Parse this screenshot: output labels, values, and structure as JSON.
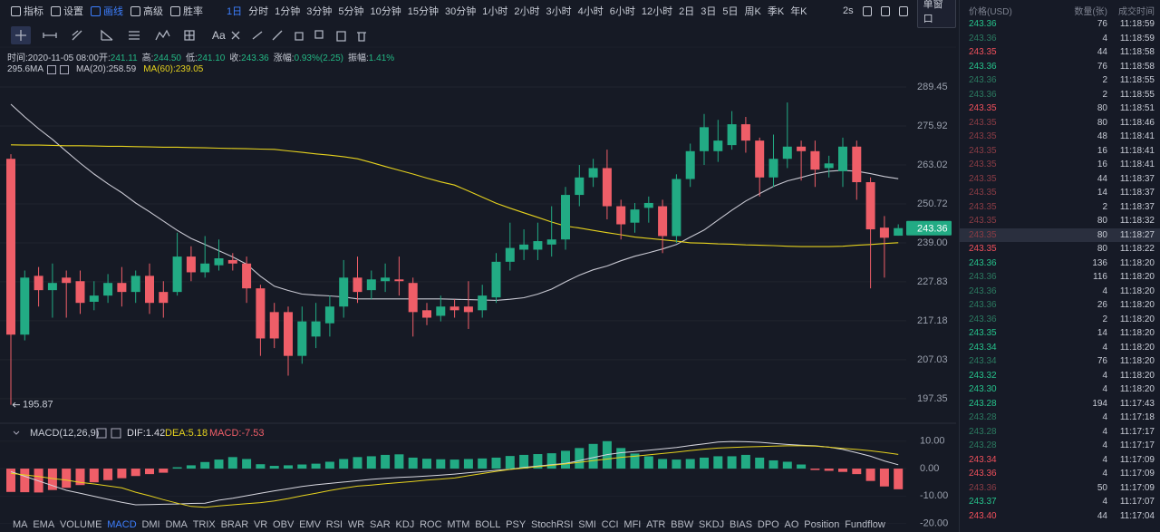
{
  "toolbar": {
    "menu": [
      "指标",
      "设置",
      "画线",
      "高级",
      "胜率"
    ],
    "menu_active": 2,
    "interval": "1日",
    "intervals": [
      "分时",
      "1分钟",
      "3分钟",
      "5分钟",
      "10分钟",
      "15分钟",
      "30分钟",
      "1小时",
      "2小时",
      "3小时",
      "4小时",
      "6小时",
      "12小时",
      "2日",
      "3日",
      "5日",
      "周K",
      "季K",
      "年K"
    ],
    "refresh": "2s",
    "window": "单窗口"
  },
  "drawing_tools": {
    "text_tool": "Aa"
  },
  "info": [
    {
      "label": "时间:",
      "value": "2020-11-05 08:00"
    },
    {
      "label": "开:",
      "value": "241.11"
    },
    {
      "label": "高:",
      "value": "244.50"
    },
    {
      "label": "低:",
      "value": "241.10"
    },
    {
      "label": "收:",
      "value": "243.36"
    },
    {
      "label": "涨幅:",
      "value": "0.93%(2.25)"
    },
    {
      "label": "振幅:",
      "value": "1.41%"
    }
  ],
  "ma_legend": {
    "label": "295.6MA",
    "items": [
      "MA(20):258.59",
      "MA(60):239.05"
    ]
  },
  "chart_data": [
    {
      "type": "candlestick",
      "up_color": "#22ab84",
      "down_color": "#ef5e68",
      "open": [
        265,
        213.5,
        229.5,
        225.5,
        229,
        228,
        222.3,
        224,
        227.5,
        225,
        229.5,
        225,
        225,
        235,
        230.5,
        232.5,
        234,
        233,
        226,
        219.5,
        219.5,
        208,
        213,
        216.5,
        221,
        229,
        225.5,
        228,
        228.5,
        227.5,
        220,
        218.5,
        221,
        221,
        220,
        223.5,
        233.5,
        237,
        237,
        238.5,
        240,
        253.5,
        259,
        262,
        250,
        245,
        249.5,
        250,
        241,
        258.5,
        267.5,
        267.5,
        269.5,
        276.5,
        271,
        259,
        265,
        269,
        267.5,
        262,
        261,
        269,
        257.5,
        243.5,
        241.11
      ],
      "high": [
        266.5,
        231,
        232,
        233,
        231,
        231,
        228,
        230,
        232,
        231,
        233,
        228,
        242,
        238,
        241,
        240,
        236,
        235,
        227,
        222,
        221,
        221,
        222,
        224,
        234,
        235,
        231,
        233,
        235,
        229,
        222,
        224,
        223,
        228,
        227,
        236,
        245,
        243,
        245,
        250,
        256,
        263,
        265,
        268,
        252,
        251,
        253,
        252,
        260,
        270,
        280,
        278,
        281,
        279,
        272,
        273,
        284,
        271,
        271,
        266,
        272,
        271,
        259,
        247,
        244.5
      ],
      "low": [
        195.87,
        212,
        221,
        218,
        218,
        219,
        220,
        222,
        221,
        222,
        219,
        218,
        224,
        228,
        229,
        231,
        231,
        222,
        208,
        210,
        203,
        206,
        210,
        213,
        218,
        222,
        223,
        225,
        224,
        213,
        216,
        217,
        218,
        215,
        218,
        222,
        231,
        234,
        234,
        235,
        237,
        250,
        256,
        246,
        240,
        242,
        245,
        236,
        239,
        256,
        263,
        264,
        268,
        267,
        253,
        256,
        262,
        258,
        256,
        259,
        256,
        252,
        226,
        229,
        241.1
      ],
      "close": [
        213.5,
        229,
        225.5,
        227.5,
        227.5,
        222,
        224,
        227.5,
        225,
        229.5,
        222,
        222,
        235,
        230.5,
        233,
        234.5,
        233,
        226,
        212.5,
        212.5,
        208,
        217,
        217,
        221,
        229,
        225,
        228.5,
        229,
        228,
        219.5,
        218,
        221,
        220,
        219.5,
        224,
        233.5,
        237.5,
        238.5,
        239.5,
        240,
        253.5,
        259,
        262,
        250,
        244.5,
        249,
        251,
        241,
        258.5,
        267.5,
        275.5,
        271,
        276.5,
        271,
        259,
        265,
        269,
        267.5,
        261.5,
        263.5,
        269,
        257.5,
        243,
        240.5,
        243.36
      ],
      "series": [
        {
          "color": "#c9c9d3",
          "values": [
            283.4,
            279,
            275,
            271.4,
            267.4,
            263.6,
            260.1,
            257,
            254.2,
            251,
            248.3,
            245.5,
            242.7,
            240.3,
            238.5,
            236.7,
            234.9,
            232.8,
            229.4,
            226.6,
            225.4,
            224.4,
            224.1,
            223.9,
            223.6,
            223.1,
            223.1,
            223.1,
            223.1,
            223.1,
            223.1,
            223.1,
            223,
            222.9,
            222.8,
            222.7,
            223,
            223.4,
            224.4,
            225.8,
            227.8,
            229.7,
            231.2,
            232.3,
            233.8,
            235.1,
            236.1,
            237.2,
            238.5,
            240.7,
            242.8,
            245.8,
            248.8,
            251.6,
            253.9,
            256.2,
            257.9,
            259,
            260.2,
            261,
            261.3,
            261,
            260.2,
            259.3,
            258.59
          ]
        },
        {
          "color": "#e6d21e",
          "values": [
            269.6,
            269.5,
            269.5,
            269.4,
            269.3,
            269.3,
            269.2,
            269.1,
            269.1,
            269,
            268.9,
            268.8,
            268.8,
            268.7,
            268.6,
            268.5,
            268.4,
            268.3,
            268.2,
            268.1,
            267.6,
            267.1,
            266.6,
            266.2,
            265.7,
            265,
            263.8,
            262.5,
            261.3,
            260.1,
            258.8,
            257.6,
            256.6,
            254.7,
            252.8,
            250.9,
            249.4,
            248,
            246.6,
            245.2,
            244,
            243.4,
            242.7,
            242,
            241.4,
            240.7,
            240.3,
            239.9,
            239.5,
            239,
            238.9,
            238.7,
            238.6,
            238.4,
            238.3,
            238.2,
            238,
            237.9,
            237.9,
            237.9,
            238,
            238.3,
            238.5,
            238.8,
            239.05
          ]
        }
      ],
      "ylim": [
        191.9,
        296.3
      ],
      "log_scale": true,
      "grid": true,
      "yticks": [
        289.45,
        275.92,
        263.02,
        250.72,
        {
          "value": 239,
          "label": "239.00"
        },
        227.83,
        217.18,
        207.03,
        197.35
      ],
      "last_price": 243.36,
      "low_marker": 195.87
    },
    {
      "type": "macd",
      "title": "MACD(12,26,9)",
      "legend": [
        "DIF:1.42",
        "DEA:5.18",
        "MACD:-7.53"
      ],
      "up_color": "#22ab84",
      "down_color": "#ef5e68",
      "histogram": [
        -8.5,
        -8.6,
        -8.7,
        -7.8,
        -7,
        -6,
        -5,
        -4.2,
        -3.5,
        -2.7,
        -2,
        -1.5,
        0.5,
        1.2,
        2.4,
        3.3,
        4.2,
        3.5,
        1.6,
        1,
        1.2,
        1.5,
        1.8,
        2.5,
        3.5,
        4.2,
        4.5,
        5,
        5.2,
        4,
        3.6,
        3.4,
        3.3,
        3.5,
        3.7,
        4,
        4.6,
        5,
        5.3,
        5.6,
        6.5,
        7.5,
        9,
        10,
        7.5,
        5.5,
        4.5,
        3.5,
        3.3,
        3.5,
        4,
        4.5,
        4.5,
        5,
        4,
        3,
        2.5,
        1.5,
        -0.5,
        -0.8,
        -1.2,
        -2,
        -4.5,
        -6.5,
        -7.53
      ],
      "series": [
        {
          "color": "#d6d6de",
          "values": [
            -1.1,
            -2.8,
            -4.5,
            -6.2,
            -7.9,
            -9,
            -10.1,
            -11.2,
            -12.3,
            -13.2,
            -13.1,
            -13,
            -12.9,
            -12.7,
            -12.6,
            -11.5,
            -10.8,
            -9.9,
            -9,
            -8.1,
            -7.3,
            -6.5,
            -5.9,
            -5.4,
            -4.9,
            -4.4,
            -3.9,
            -3.5,
            -3.2,
            -3,
            -2.7,
            -2.4,
            -2,
            -1.5,
            -1.1,
            -0.6,
            -0.2,
            0.4,
            0.9,
            1.4,
            1.9,
            2.9,
            4,
            5.1,
            5.8,
            6.2,
            6.7,
            7.2,
            7.7,
            8.4,
            9,
            9.7,
            9.9,
            9.8,
            9.6,
            9.2,
            8.8,
            8.5,
            8.3,
            7.8,
            7,
            5.8,
            4.5,
            2.8,
            1.42
          ]
        },
        {
          "color": "#e6d21e",
          "values": [
            -1.7,
            -2.3,
            -2.9,
            -3.6,
            -4.2,
            -5,
            -5.6,
            -6.3,
            -7,
            -8.6,
            -9.9,
            -11.3,
            -12.6,
            -13.8,
            -14.1,
            -13.6,
            -13.2,
            -12.8,
            -12.4,
            -11.8,
            -10.9,
            -9.9,
            -9,
            -8,
            -7.1,
            -6.4,
            -6,
            -5.5,
            -5.1,
            -4.7,
            -4.2,
            -3.8,
            -3.4,
            -2.6,
            -1.8,
            -1,
            -0.3,
            0.2,
            0.7,
            1.2,
            1.7,
            2.3,
            2.9,
            3.5,
            4.1,
            4.5,
            5,
            5.5,
            6,
            6.6,
            7.1,
            7.5,
            7.7,
            7.9,
            8,
            8.2,
            8.3,
            8.3,
            8.2,
            7.8,
            7.4,
            7,
            6.5,
            5.9,
            5.18
          ]
        }
      ],
      "ylim": [
        -23.1,
        12.9
      ],
      "yticks": [
        {
          "value": 10,
          "label": "10.00"
        },
        {
          "value": 0,
          "label": "0.00"
        },
        {
          "value": -10,
          "label": "-10.00"
        },
        {
          "value": -20,
          "label": "-20.00"
        }
      ]
    }
  ],
  "indicator_tabs": {
    "items": [
      "MA",
      "EMA",
      "VOLUME",
      "MACD",
      "DMI",
      "DMA",
      "TRIX",
      "BRAR",
      "VR",
      "OBV",
      "EMV",
      "RSI",
      "WR",
      "SAR",
      "KDJ",
      "ROC",
      "MTM",
      "BOLL",
      "PSY",
      "StochRSI",
      "SMI",
      "CCI",
      "MFI",
      "ATR",
      "BBW",
      "SKDJ",
      "BIAS",
      "DPO",
      "AO",
      "Position",
      "Fundflow"
    ],
    "active": 3
  },
  "trades": {
    "headers": [
      "价格(USD)",
      "数量(张)",
      "成交时间"
    ],
    "rows": [
      {
        "price": "243.36",
        "qty": "76",
        "time": "11:18:59",
        "color": "#26c28b"
      },
      {
        "price": "243.36",
        "qty": "4",
        "time": "11:18:59",
        "color": "#2b7a60"
      },
      {
        "price": "243.35",
        "qty": "44",
        "time": "11:18:58",
        "color": "#f0505b"
      },
      {
        "price": "243.36",
        "qty": "76",
        "time": "11:18:58",
        "color": "#26c28b"
      },
      {
        "price": "243.36",
        "qty": "2",
        "time": "11:18:55",
        "color": "#2b7a60"
      },
      {
        "price": "243.36",
        "qty": "2",
        "time": "11:18:55",
        "color": "#2b7a60"
      },
      {
        "price": "243.35",
        "qty": "80",
        "time": "11:18:51",
        "color": "#f0505b"
      },
      {
        "price": "243.35",
        "qty": "80",
        "time": "11:18:46",
        "color": "#8a3c45"
      },
      {
        "price": "243.35",
        "qty": "48",
        "time": "11:18:41",
        "color": "#8a3c45"
      },
      {
        "price": "243.35",
        "qty": "16",
        "time": "11:18:41",
        "color": "#8a3c45"
      },
      {
        "price": "243.35",
        "qty": "16",
        "time": "11:18:41",
        "color": "#8a3c45"
      },
      {
        "price": "243.35",
        "qty": "44",
        "time": "11:18:37",
        "color": "#8a3c45"
      },
      {
        "price": "243.35",
        "qty": "14",
        "time": "11:18:37",
        "color": "#8a3c45"
      },
      {
        "price": "243.35",
        "qty": "2",
        "time": "11:18:37",
        "color": "#8a3c45"
      },
      {
        "price": "243.35",
        "qty": "80",
        "time": "11:18:32",
        "color": "#8a3c45"
      },
      {
        "price": "243.35",
        "qty": "80",
        "time": "11:18:27",
        "color": "#8a3c45"
      },
      {
        "price": "243.35",
        "qty": "80",
        "time": "11:18:22",
        "color": "#f0505b"
      },
      {
        "price": "243.36",
        "qty": "136",
        "time": "11:18:20",
        "color": "#26c28b"
      },
      {
        "price": "243.36",
        "qty": "116",
        "time": "11:18:20",
        "color": "#2b7a60"
      },
      {
        "price": "243.36",
        "qty": "4",
        "time": "11:18:20",
        "color": "#2b7a60"
      },
      {
        "price": "243.36",
        "qty": "26",
        "time": "11:18:20",
        "color": "#2b7a60"
      },
      {
        "price": "243.36",
        "qty": "2",
        "time": "11:18:20",
        "color": "#2b7a60"
      },
      {
        "price": "243.35",
        "qty": "14",
        "time": "11:18:20",
        "color": "#26c28b"
      },
      {
        "price": "243.34",
        "qty": "4",
        "time": "11:18:20",
        "color": "#26c28b"
      },
      {
        "price": "243.34",
        "qty": "76",
        "time": "11:18:20",
        "color": "#2b7a60"
      },
      {
        "price": "243.32",
        "qty": "4",
        "time": "11:18:20",
        "color": "#26c28b"
      },
      {
        "price": "243.30",
        "qty": "4",
        "time": "11:18:20",
        "color": "#26c28b"
      },
      {
        "price": "243.28",
        "qty": "194",
        "time": "11:17:43",
        "color": "#26c28b"
      },
      {
        "price": "243.28",
        "qty": "4",
        "time": "11:17:18",
        "color": "#2b7a60"
      },
      {
        "price": "243.28",
        "qty": "4",
        "time": "11:17:17",
        "color": "#2b7a60"
      },
      {
        "price": "243.28",
        "qty": "4",
        "time": "11:17:17",
        "color": "#2b7a60"
      },
      {
        "price": "243.34",
        "qty": "4",
        "time": "11:17:09",
        "color": "#f0505b"
      },
      {
        "price": "243.36",
        "qty": "4",
        "time": "11:17:09",
        "color": "#f0505b"
      },
      {
        "price": "243.36",
        "qty": "50",
        "time": "11:17:09",
        "color": "#8a3c45"
      },
      {
        "price": "243.37",
        "qty": "4",
        "time": "11:17:07",
        "color": "#26c28b"
      },
      {
        "price": "243.40",
        "qty": "44",
        "time": "11:17:04",
        "color": "#f0505b"
      }
    ]
  }
}
